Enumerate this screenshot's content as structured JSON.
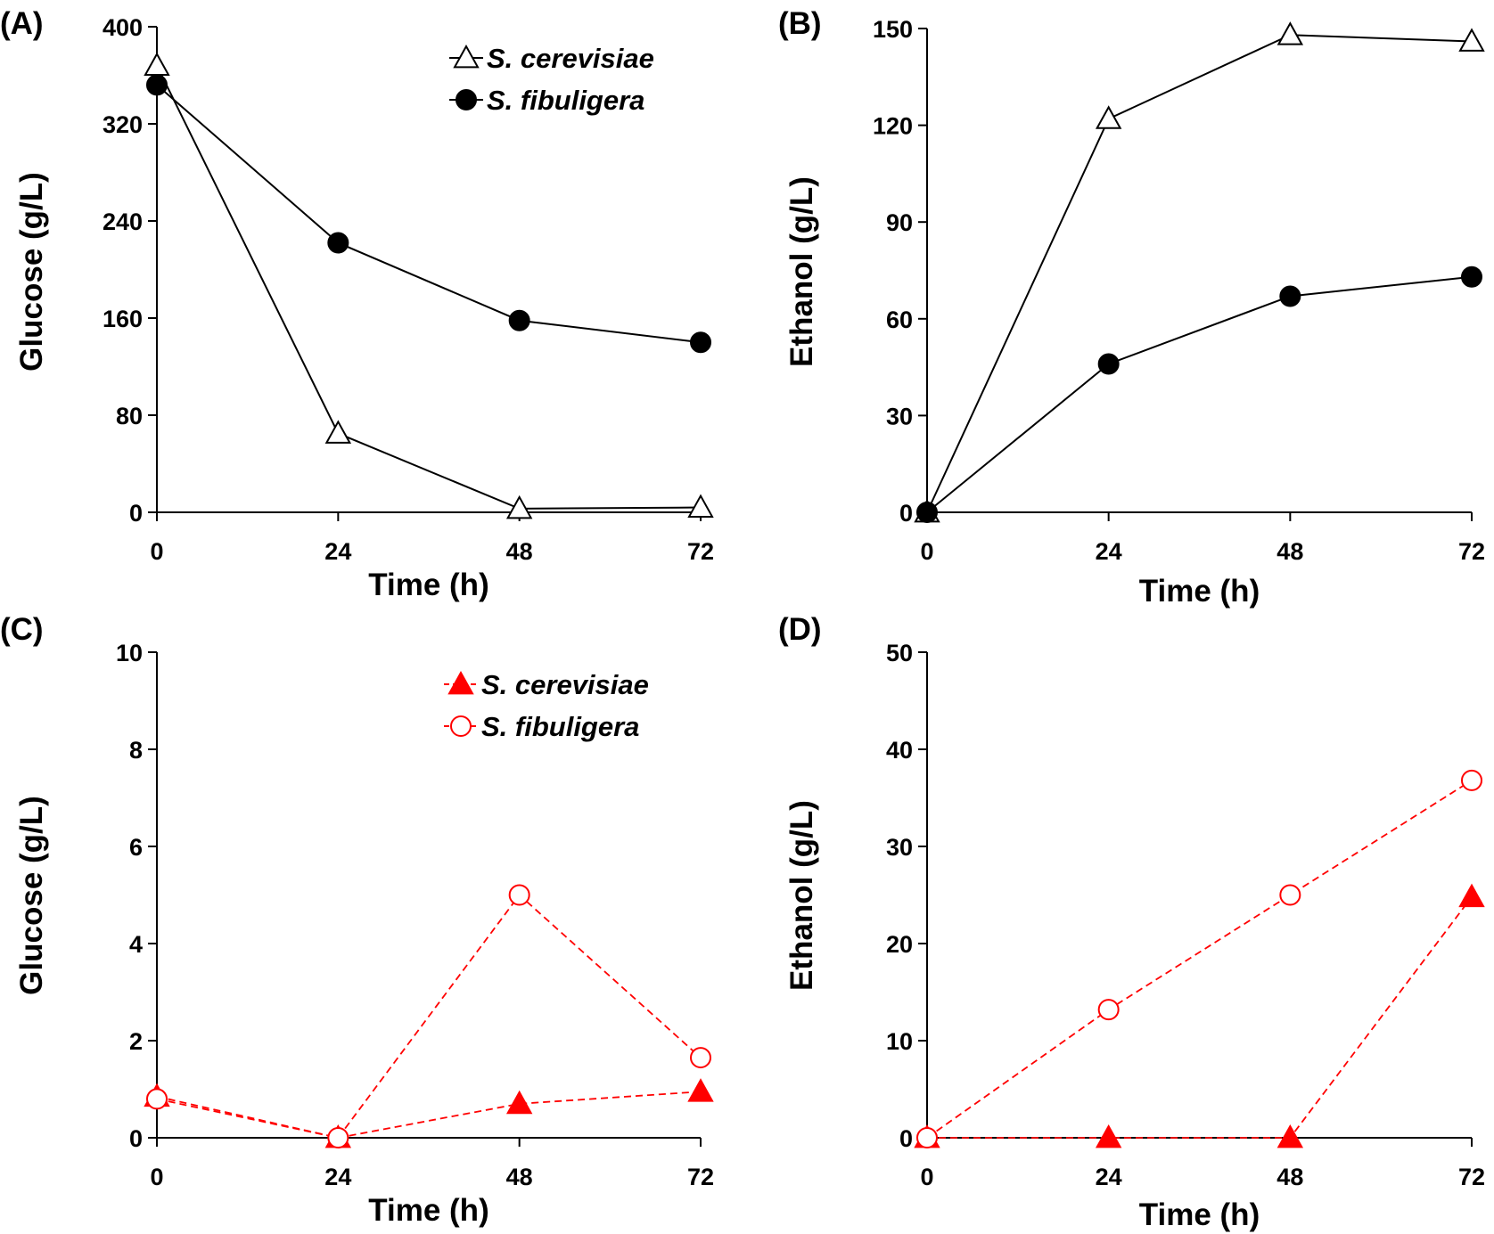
{
  "chart_data": [
    {
      "panel": "(A)",
      "type": "line",
      "xlabel": "Time (h)",
      "ylabel": "Glucose (g/L)",
      "x": [
        0,
        24,
        48,
        72
      ],
      "xticks": [
        "0",
        "24",
        "48",
        "72"
      ],
      "ylim": [
        0,
        400
      ],
      "yticks": [
        "0",
        "80",
        "160",
        "240",
        "320",
        "400"
      ],
      "legend": "top-right",
      "series": [
        {
          "name": "S. cerevisiae",
          "marker": "triangle-open",
          "color": "#000000",
          "dashed": false,
          "values": [
            368,
            65,
            3,
            4
          ]
        },
        {
          "name": "S. fibuligera",
          "marker": "circle-filled",
          "color": "#000000",
          "dashed": false,
          "values": [
            352,
            222,
            158,
            140
          ]
        }
      ]
    },
    {
      "panel": "(B)",
      "type": "line",
      "xlabel": "Time (h)",
      "ylabel": "Ethanol (g/L)",
      "x": [
        0,
        24,
        48,
        72
      ],
      "xticks": [
        "0",
        "24",
        "48",
        "72"
      ],
      "ylim": [
        0,
        150
      ],
      "yticks": [
        "0",
        "30",
        "60",
        "90",
        "120",
        "150"
      ],
      "legend": "none",
      "series": [
        {
          "name": "S. cerevisiae",
          "marker": "triangle-open",
          "color": "#000000",
          "dashed": false,
          "values": [
            0,
            122,
            148,
            146
          ]
        },
        {
          "name": "S. fibuligera",
          "marker": "circle-filled",
          "color": "#000000",
          "dashed": false,
          "values": [
            0,
            46,
            67,
            73
          ]
        }
      ]
    },
    {
      "panel": "(C)",
      "type": "line",
      "xlabel": "Time (h)",
      "ylabel": "Glucose (g/L)",
      "x": [
        0,
        24,
        48,
        72
      ],
      "xticks": [
        "0",
        "24",
        "48",
        "72"
      ],
      "ylim": [
        0,
        10
      ],
      "yticks": [
        "0",
        "2",
        "4",
        "6",
        "8",
        "10"
      ],
      "legend": "top-right",
      "series": [
        {
          "name": "S. cerevisiae",
          "marker": "triangle-filled",
          "color": "#ff0000",
          "dashed": true,
          "values": [
            0.85,
            0,
            0.7,
            0.95
          ]
        },
        {
          "name": "S. fibuligera",
          "marker": "circle-open",
          "color": "#ff0000",
          "dashed": true,
          "values": [
            0.8,
            0,
            5.0,
            1.65
          ]
        }
      ]
    },
    {
      "panel": "(D)",
      "type": "line",
      "xlabel": "Time (h)",
      "ylabel": "Ethanol (g/L)",
      "x": [
        0,
        24,
        48,
        72
      ],
      "xticks": [
        "0",
        "24",
        "48",
        "72"
      ],
      "ylim": [
        0,
        50
      ],
      "yticks": [
        "0",
        "10",
        "20",
        "30",
        "40",
        "50"
      ],
      "legend": "none",
      "series": [
        {
          "name": "S. cerevisiae",
          "marker": "triangle-filled",
          "color": "#ff0000",
          "dashed": true,
          "values": [
            0,
            0,
            0,
            24.8
          ]
        },
        {
          "name": "S. fibuligera",
          "marker": "circle-open",
          "color": "#ff0000",
          "dashed": true,
          "values": [
            0,
            13.2,
            25,
            36.8
          ]
        }
      ]
    }
  ]
}
